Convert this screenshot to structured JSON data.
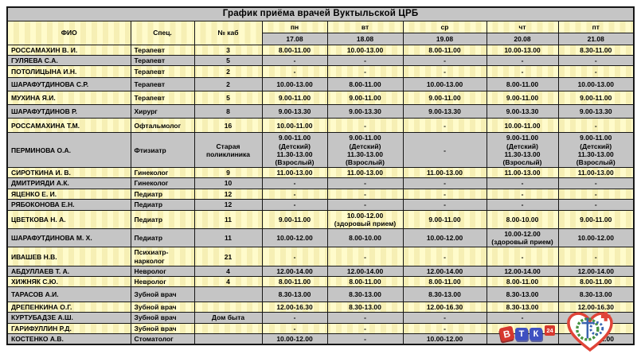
{
  "title": "График приёма врачей Вуктыльской ЦРБ",
  "columns": {
    "fio": "ФИО",
    "spec": "Спец.",
    "kab": "№ каб"
  },
  "days": [
    {
      "label": "пн",
      "date": "17.08"
    },
    {
      "label": "вт",
      "date": "18.08"
    },
    {
      "label": "ср",
      "date": "19.08"
    },
    {
      "label": "чт",
      "date": "20.08"
    },
    {
      "label": "пт",
      "date": "21.08"
    }
  ],
  "rows": [
    {
      "fio": "РОССАМАХИН В. И.",
      "spec": "Терапевт",
      "kab": "3",
      "schedule": [
        "8.00-11.00",
        "10.00-13.00",
        "8.00-11.00",
        "10.00-13.00",
        "8.30-11.00"
      ]
    },
    {
      "fio": "ГУЛЯЕВА С.А.",
      "spec": "Терапевт",
      "kab": "5",
      "schedule": [
        "-",
        "-",
        "-",
        "-",
        "-"
      ]
    },
    {
      "fio": "ПОТОЛИЦЫНА И.Н.",
      "spec": "Терапевт",
      "kab": "2",
      "schedule": [
        "-",
        "-",
        "-",
        "-",
        "-"
      ]
    },
    {
      "fio": "ШАРАФУТДИНОВА С.Р.",
      "spec": "Терапевт",
      "kab": "2",
      "schedule": [
        "10.00-13.00",
        "8.00-11.00",
        "10.00-13.00",
        "8.00-11.00",
        "10.00-13.00"
      ]
    },
    {
      "fio": "МУХИНА Я.И.",
      "spec": "Терапевт",
      "kab": "5",
      "schedule": [
        "9.00-11.00",
        "9.00-11.00",
        "9.00-11.00",
        "9.00-11.00",
        "9.00-11.00"
      ]
    },
    {
      "fio": "ШАРАФУТДИНОВ Р.",
      "spec": "Хирург",
      "kab": "8",
      "schedule": [
        "9.00-13.30",
        "9.00-13.30",
        "9.00-13.30",
        "9.00-13.30",
        "9.00-13.30"
      ]
    },
    {
      "fio": "РОССАМАХИНА Т.М.",
      "spec": "Офтальмолог",
      "kab": "16",
      "schedule": [
        "10.00-11.00",
        "-",
        "-",
        "10.00-11.00",
        "-"
      ]
    },
    {
      "fio": "ПЕРМИНОВА О.А.",
      "spec": "Фтизиатр",
      "kab": "Старая\nполиклиника",
      "schedule": [
        "9.00-11.00\n(Детский)\n11.30-13.00\n(Взрослый)",
        "9.00-11.00\n(Детский)\n11.30-13.00\n(Взрослый)",
        "-",
        "9.00-11.00\n(Детский)\n11.30-13.00\n(Взрослый)",
        "9.00-11.00\n(Детский)\n11.30-13.00\n(Взрослый)"
      ]
    },
    {
      "fio": "СИРОТКИНА И. В.",
      "spec": "Гинеколог",
      "kab": "9",
      "schedule": [
        "11.00-13.00",
        "11.00-13.00",
        "11.00-13.00",
        "11.00-13.00",
        "11.00-13.00"
      ]
    },
    {
      "fio": "ДМИТРИЯДИ А.К.",
      "spec": "Гинеколог",
      "kab": "10",
      "schedule": [
        "-",
        "-",
        "-",
        "-",
        "-"
      ]
    },
    {
      "fio": "ЯЦЕНКО Е. И.",
      "spec": "Педиатр",
      "kab": "12",
      "schedule": [
        "-",
        "-",
        "-",
        "-",
        "-"
      ]
    },
    {
      "fio": "РЯБОКОНОВА Е.Н.",
      "spec": "Педиатр",
      "kab": "12",
      "schedule": [
        "-",
        "-",
        "-",
        "-",
        "-"
      ]
    },
    {
      "fio": "ЦВЕТКОВА Н. А.",
      "spec": "Педиатр",
      "kab": "11",
      "schedule": [
        "9.00-11.00",
        "10.00-12.00\n(здоровый прием)",
        "9.00-11.00",
        "8.00-10.00",
        "9.00-11.00"
      ]
    },
    {
      "fio": "ШАРАФУТДИНОВА М. Х.",
      "spec": "Педиатр",
      "kab": "11",
      "schedule": [
        "10.00-12.00",
        "8.00-10.00",
        "10.00-12.00",
        "10.00-12.00\n(здоровый прием)",
        "10.00-12.00"
      ]
    },
    {
      "fio": "ИВАШЕВ Н.В.",
      "spec": "Психиатр-нарколог",
      "kab": "21",
      "schedule": [
        "-",
        "-",
        "-",
        "-",
        "-"
      ]
    },
    {
      "fio": "АБДУЛЛАЕВ Т. А.",
      "spec": "Невролог",
      "kab": "4",
      "schedule": [
        "12.00-14.00",
        "12.00-14.00",
        "12.00-14.00",
        "12.00-14.00",
        "12.00-14.00"
      ]
    },
    {
      "fio": "ХИЖНЯК С.Ю.",
      "spec": "Невролог",
      "kab": "4",
      "schedule": [
        "8.00-11.00",
        "8.00-11.00",
        "8.00-11.00",
        "8.00-11.00",
        "8.00-11.00"
      ]
    },
    {
      "fio": "ТАРАСОВ А.И.",
      "spec": "Зубной врач",
      "kab": "",
      "schedule": [
        "8.30-13.00",
        "8.30-13.00",
        "8.30-13.00",
        "8.30-13.00",
        "8.30-13.00"
      ]
    },
    {
      "fio": "ДРЕПЕНКИНА О.Г.",
      "spec": "Зубной врач",
      "kab": "",
      "schedule": [
        "12.00-16.30",
        "8.30-13.00",
        "12.00-16.30",
        "8.30-13.00",
        "12.00-16.30"
      ]
    },
    {
      "fio": "КУРТУБАДЗЕ А.Ш.",
      "spec": "Зубной врач",
      "kab": "Дом быта",
      "schedule": [
        "-",
        "-",
        "-",
        "-",
        "-"
      ]
    },
    {
      "fio": "ГАРИФУЛЛИН Р.Д.",
      "spec": "Зубной врач",
      "kab": "",
      "schedule": [
        "-",
        "-",
        "-",
        "-",
        "-"
      ]
    },
    {
      "fio": "КОСТЕНКО А.В.",
      "spec": "Стоматолог",
      "kab": "",
      "schedule": [
        "10.00-12.00",
        "-",
        "10.00-12.00",
        "-",
        "10.00-12.00"
      ]
    }
  ],
  "logos": {
    "vtk": {
      "letters": [
        "В",
        "Т",
        "К"
      ],
      "badge": "24"
    }
  },
  "colors": {
    "row_yellow": "#FFFBCB",
    "row_yellow_stripe": "#F6EFB4",
    "row_gray": "#C5C5C5",
    "logo_red": "#D6382E",
    "logo_blue": "#3F51C1",
    "heart_red": "#E04438",
    "wreath_green": "#44923F",
    "gear_blue": "#3A63B0"
  }
}
